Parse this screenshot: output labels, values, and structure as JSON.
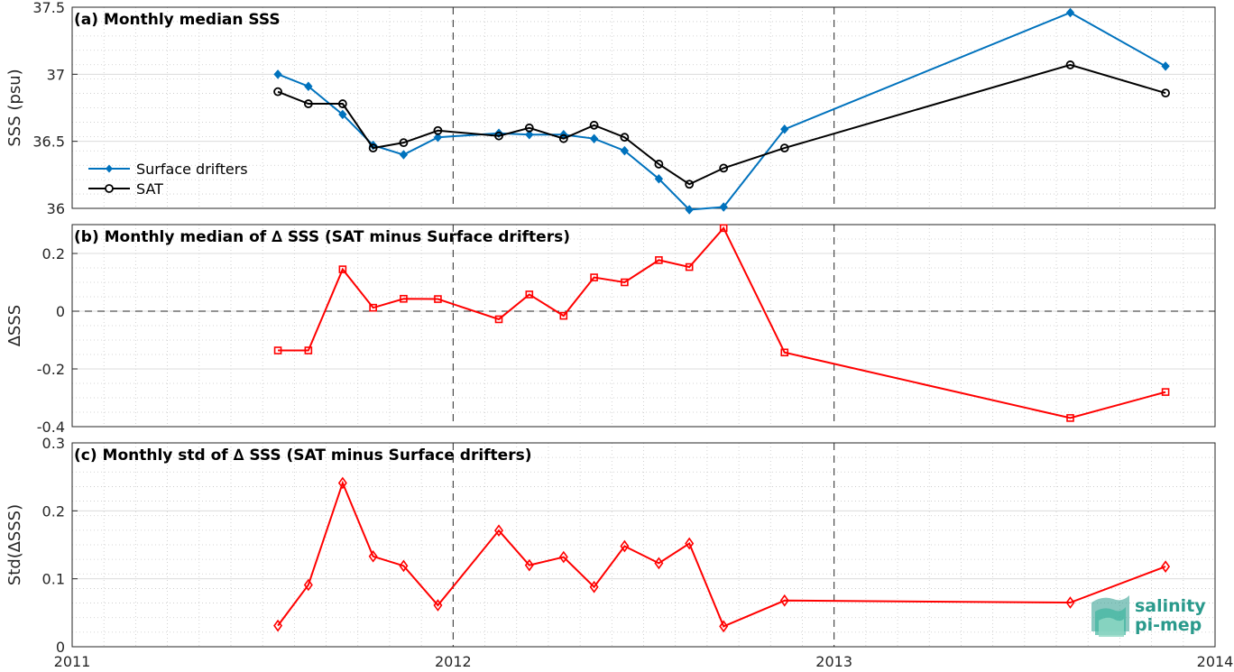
{
  "chart_data": [
    {
      "type": "line",
      "title": "(a) Monthly median SSS",
      "ylabel": "SSS (psu)",
      "ylim": [
        36,
        37.5
      ],
      "yticks": [
        "36",
        "36.5",
        "37",
        "37.5"
      ],
      "xlim": [
        2011,
        2014
      ],
      "grid": true,
      "legend": "left",
      "series": [
        {
          "name": "Surface drifters",
          "color": "#0072bd",
          "marker": "diamond-filled",
          "points": [
            [
              2011.54,
              37.0
            ],
            [
              2011.62,
              36.91
            ],
            [
              2011.71,
              36.7
            ],
            [
              2011.79,
              36.47
            ],
            [
              2011.87,
              36.4
            ],
            [
              2011.96,
              36.53
            ],
            [
              2012.12,
              36.56
            ],
            [
              2012.2,
              36.55
            ],
            [
              2012.29,
              36.55
            ],
            [
              2012.37,
              36.52
            ],
            [
              2012.45,
              36.43
            ],
            [
              2012.54,
              36.22
            ],
            [
              2012.62,
              35.99
            ],
            [
              2012.71,
              36.01
            ],
            [
              2012.87,
              36.59
            ],
            [
              2013.62,
              37.46
            ],
            [
              2013.87,
              37.06
            ]
          ]
        },
        {
          "name": "SAT",
          "color": "#000000",
          "marker": "circle-open",
          "points": [
            [
              2011.54,
              36.87
            ],
            [
              2011.62,
              36.78
            ],
            [
              2011.71,
              36.78
            ],
            [
              2011.79,
              36.45
            ],
            [
              2011.87,
              36.49
            ],
            [
              2011.96,
              36.58
            ],
            [
              2012.12,
              36.54
            ],
            [
              2012.2,
              36.6
            ],
            [
              2012.29,
              36.52
            ],
            [
              2012.37,
              36.62
            ],
            [
              2012.45,
              36.53
            ],
            [
              2012.54,
              36.33
            ],
            [
              2012.62,
              36.18
            ],
            [
              2012.71,
              36.3
            ],
            [
              2012.87,
              36.45
            ],
            [
              2013.62,
              37.07
            ],
            [
              2013.87,
              36.86
            ]
          ]
        }
      ]
    },
    {
      "type": "line",
      "title": "(b) Monthly median of ∆ SSS (SAT minus Surface drifters)",
      "ylabel": "∆SSS",
      "ylim": [
        -0.4,
        0.3
      ],
      "yticks": [
        "-0.4",
        "-0.2",
        "0",
        "0.2"
      ],
      "xlim": [
        2011,
        2014
      ],
      "grid": true,
      "zero_line": true,
      "series": [
        {
          "color": "#ff0000",
          "marker": "square-open",
          "points": [
            [
              2011.54,
              -0.136
            ],
            [
              2011.62,
              -0.136
            ],
            [
              2011.71,
              0.145
            ],
            [
              2011.79,
              0.012
            ],
            [
              2011.87,
              0.043
            ],
            [
              2011.96,
              0.042
            ],
            [
              2012.12,
              -0.028
            ],
            [
              2012.2,
              0.058
            ],
            [
              2012.29,
              -0.016
            ],
            [
              2012.37,
              0.117
            ],
            [
              2012.45,
              0.1
            ],
            [
              2012.54,
              0.177
            ],
            [
              2012.62,
              0.153
            ],
            [
              2012.71,
              0.288
            ],
            [
              2012.87,
              -0.143
            ],
            [
              2013.62,
              -0.37
            ],
            [
              2013.87,
              -0.28
            ]
          ]
        }
      ]
    },
    {
      "type": "line",
      "title": "(c) Monthly std of ∆ SSS (SAT minus Surface drifters)",
      "ylabel": "Std(∆SSS)",
      "ylim": [
        0,
        0.3
      ],
      "yticks": [
        "0",
        "0.1",
        "0.2",
        "0.3"
      ],
      "xlim": [
        2011,
        2014
      ],
      "xticks": [
        "2011",
        "2012",
        "2013",
        "2014"
      ],
      "grid": true,
      "series": [
        {
          "color": "#ff0000",
          "marker": "diamond-open",
          "points": [
            [
              2011.54,
              0.031
            ],
            [
              2011.62,
              0.091
            ],
            [
              2011.71,
              0.241
            ],
            [
              2011.79,
              0.133
            ],
            [
              2011.87,
              0.119
            ],
            [
              2011.96,
              0.061
            ],
            [
              2012.12,
              0.171
            ],
            [
              2012.2,
              0.12
            ],
            [
              2012.29,
              0.132
            ],
            [
              2012.37,
              0.088
            ],
            [
              2012.45,
              0.148
            ],
            [
              2012.54,
              0.123
            ],
            [
              2012.62,
              0.152
            ],
            [
              2012.71,
              0.03
            ],
            [
              2012.87,
              0.068
            ],
            [
              2013.62,
              0.065
            ],
            [
              2013.87,
              0.118
            ]
          ]
        }
      ]
    }
  ],
  "logo": {
    "line1": "salinity",
    "line2": "pi-mep",
    "color": "#2a9a8c"
  }
}
